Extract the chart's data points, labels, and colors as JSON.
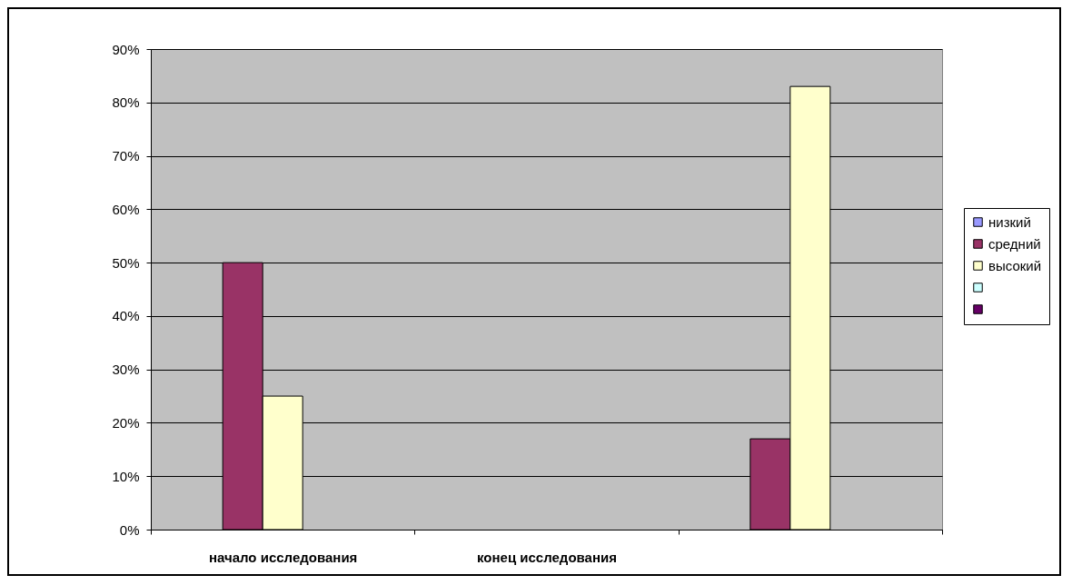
{
  "chart_data": {
    "type": "bar",
    "categories": [
      "начало исследования",
      "конец исследования",
      null
    ],
    "series": [
      {
        "name": "низкий",
        "color": "#9999ff",
        "values": [
          null,
          null,
          null
        ]
      },
      {
        "name": "средний",
        "color": "#993366",
        "values": [
          50,
          null,
          17
        ]
      },
      {
        "name": "высокий",
        "color": "#ffffcc",
        "values": [
          25,
          null,
          83
        ]
      },
      {
        "color": "#ccffff",
        "values": [
          null,
          null,
          null
        ]
      },
      {
        "color": "#660066",
        "values": [
          null,
          null,
          null
        ]
      }
    ],
    "ylim": [
      0,
      90
    ],
    "yticks": [
      {
        "value": 0,
        "label": "0%"
      },
      {
        "value": 10,
        "label": "10%"
      },
      {
        "value": 20,
        "label": "20%"
      },
      {
        "value": 30,
        "label": "30%"
      },
      {
        "value": 40,
        "label": "40%"
      },
      {
        "value": 50,
        "label": "50%"
      },
      {
        "value": 60,
        "label": "60%"
      },
      {
        "value": 70,
        "label": "70%"
      },
      {
        "value": 80,
        "label": "80%"
      },
      {
        "value": 90,
        "label": "90%"
      }
    ],
    "grid": "y",
    "legend": "right"
  }
}
